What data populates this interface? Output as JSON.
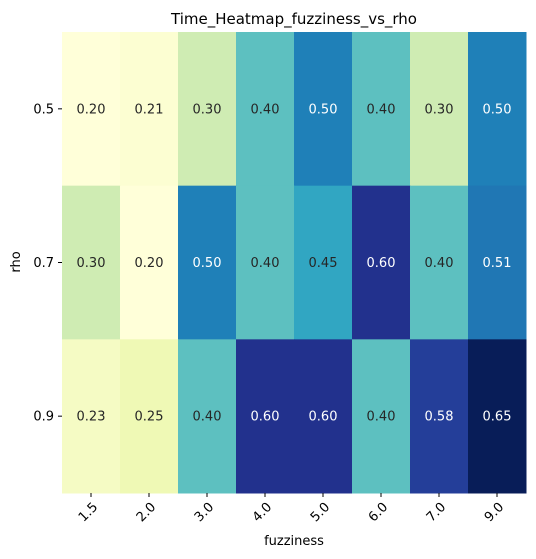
{
  "chart_data": {
    "type": "heatmap",
    "title": "Time_Heatmap_fuzziness_vs_rho",
    "xlabel": "fuzziness",
    "ylabel": "rho",
    "x_categories": [
      "1.5",
      "2.0",
      "3.0",
      "4.0",
      "5.0",
      "6.0",
      "7.0",
      "9.0"
    ],
    "y_categories": [
      "0.5",
      "0.7",
      "0.9"
    ],
    "values": [
      [
        0.2,
        0.21,
        0.3,
        0.4,
        0.5,
        0.4,
        0.3,
        0.5
      ],
      [
        0.3,
        0.2,
        0.5,
        0.4,
        0.45,
        0.6,
        0.4,
        0.51
      ],
      [
        0.23,
        0.25,
        0.4,
        0.6,
        0.6,
        0.4,
        0.58,
        0.65
      ]
    ],
    "value_labels": [
      [
        "0.20",
        "0.21",
        "0.30",
        "0.40",
        "0.50",
        "0.40",
        "0.30",
        "0.50"
      ],
      [
        "0.30",
        "0.20",
        "0.50",
        "0.40",
        "0.45",
        "0.60",
        "0.40",
        "0.51"
      ],
      [
        "0.23",
        "0.25",
        "0.40",
        "0.60",
        "0.60",
        "0.40",
        "0.58",
        "0.65"
      ]
    ],
    "colormap": "YlGnBu",
    "vmin": 0.2,
    "vmax": 0.65,
    "colorbar": false
  }
}
